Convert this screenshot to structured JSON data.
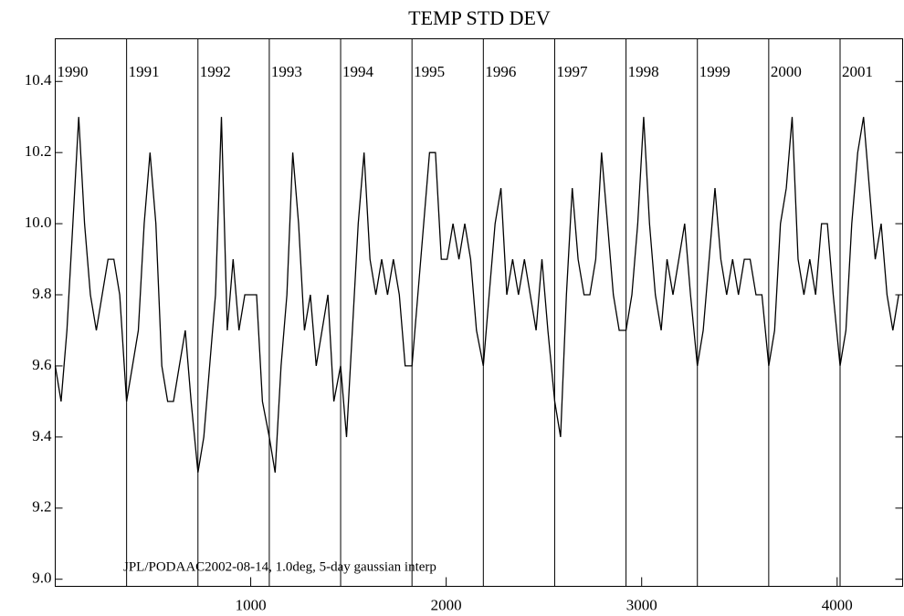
{
  "chart_data": {
    "type": "line",
    "title": "TEMP STD DEV",
    "annotation": "JPL/PODAAC2002-08-14, 1.0deg, 5-day gaussian interp",
    "years": [
      "1990",
      "1991",
      "1992",
      "1993",
      "1994",
      "1995",
      "1996",
      "1997",
      "1998",
      "1999",
      "2000",
      "2001"
    ],
    "year_starts": [
      0,
      365,
      730,
      1095,
      1460,
      1825,
      2190,
      2555,
      2920,
      3285,
      3650,
      4015
    ],
    "xlim": [
      0,
      4335
    ],
    "ylim": [
      8.98,
      10.52
    ],
    "xticks": [
      1000,
      2000,
      3000,
      4000
    ],
    "yticks": [
      {
        "value": 9,
        "label": "9.0"
      },
      9.2,
      9.4,
      9.6,
      9.8,
      {
        "value": 10,
        "label": "10.0"
      },
      10.2,
      10.4
    ],
    "color": "#000000",
    "x": [
      0,
      30,
      60,
      90,
      120,
      150,
      180,
      210,
      240,
      270,
      300,
      330,
      365,
      395,
      425,
      455,
      485,
      515,
      545,
      575,
      605,
      635,
      665,
      695,
      730,
      760,
      790,
      820,
      850,
      880,
      910,
      940,
      970,
      1000,
      1030,
      1060,
      1095,
      1125,
      1155,
      1185,
      1215,
      1245,
      1275,
      1305,
      1335,
      1365,
      1395,
      1425,
      1460,
      1490,
      1520,
      1550,
      1580,
      1610,
      1640,
      1670,
      1700,
      1730,
      1760,
      1790,
      1825,
      1855,
      1885,
      1915,
      1945,
      1975,
      2005,
      2035,
      2065,
      2095,
      2125,
      2155,
      2190,
      2220,
      2250,
      2280,
      2310,
      2340,
      2370,
      2400,
      2430,
      2460,
      2490,
      2520,
      2555,
      2585,
      2615,
      2645,
      2675,
      2705,
      2735,
      2765,
      2795,
      2825,
      2855,
      2885,
      2920,
      2950,
      2980,
      3010,
      3040,
      3070,
      3100,
      3130,
      3160,
      3190,
      3220,
      3250,
      3285,
      3315,
      3345,
      3375,
      3405,
      3435,
      3465,
      3495,
      3525,
      3555,
      3585,
      3615,
      3650,
      3680,
      3710,
      3740,
      3770,
      3800,
      3830,
      3860,
      3890,
      3920,
      3950,
      3980,
      4015,
      4045,
      4075,
      4105,
      4135,
      4165,
      4195,
      4225,
      4255,
      4285,
      4315
    ],
    "values": [
      9.6,
      9.5,
      9.7,
      10.0,
      10.3,
      10.0,
      9.8,
      9.7,
      9.8,
      9.9,
      9.9,
      9.8,
      9.5,
      9.6,
      9.7,
      10.0,
      10.2,
      10.0,
      9.6,
      9.5,
      9.5,
      9.6,
      9.7,
      9.5,
      9.3,
      9.4,
      9.6,
      9.8,
      10.3,
      9.7,
      9.9,
      9.7,
      9.8,
      9.8,
      9.8,
      9.5,
      9.4,
      9.3,
      9.6,
      9.8,
      10.2,
      10.0,
      9.7,
      9.8,
      9.6,
      9.7,
      9.8,
      9.5,
      9.6,
      9.4,
      9.7,
      10.0,
      10.2,
      9.9,
      9.8,
      9.9,
      9.8,
      9.9,
      9.8,
      9.6,
      9.6,
      9.8,
      10.0,
      10.2,
      10.2,
      9.9,
      9.9,
      10.0,
      9.9,
      10.0,
      9.9,
      9.7,
      9.6,
      9.8,
      10.0,
      10.1,
      9.8,
      9.9,
      9.8,
      9.9,
      9.8,
      9.7,
      9.9,
      9.7,
      9.5,
      9.4,
      9.8,
      10.1,
      9.9,
      9.8,
      9.8,
      9.9,
      10.2,
      10.0,
      9.8,
      9.7,
      9.7,
      9.8,
      10.0,
      10.3,
      10.0,
      9.8,
      9.7,
      9.9,
      9.8,
      9.9,
      10.0,
      9.8,
      9.6,
      9.7,
      9.9,
      10.1,
      9.9,
      9.8,
      9.9,
      9.8,
      9.9,
      9.9,
      9.8,
      9.8,
      9.6,
      9.7,
      10.0,
      10.1,
      10.3,
      9.9,
      9.8,
      9.9,
      9.8,
      10.0,
      10.0,
      9.8,
      9.6,
      9.7,
      10.0,
      10.2,
      10.3,
      10.1,
      9.9,
      10.0,
      9.8,
      9.7,
      9.8
    ]
  }
}
